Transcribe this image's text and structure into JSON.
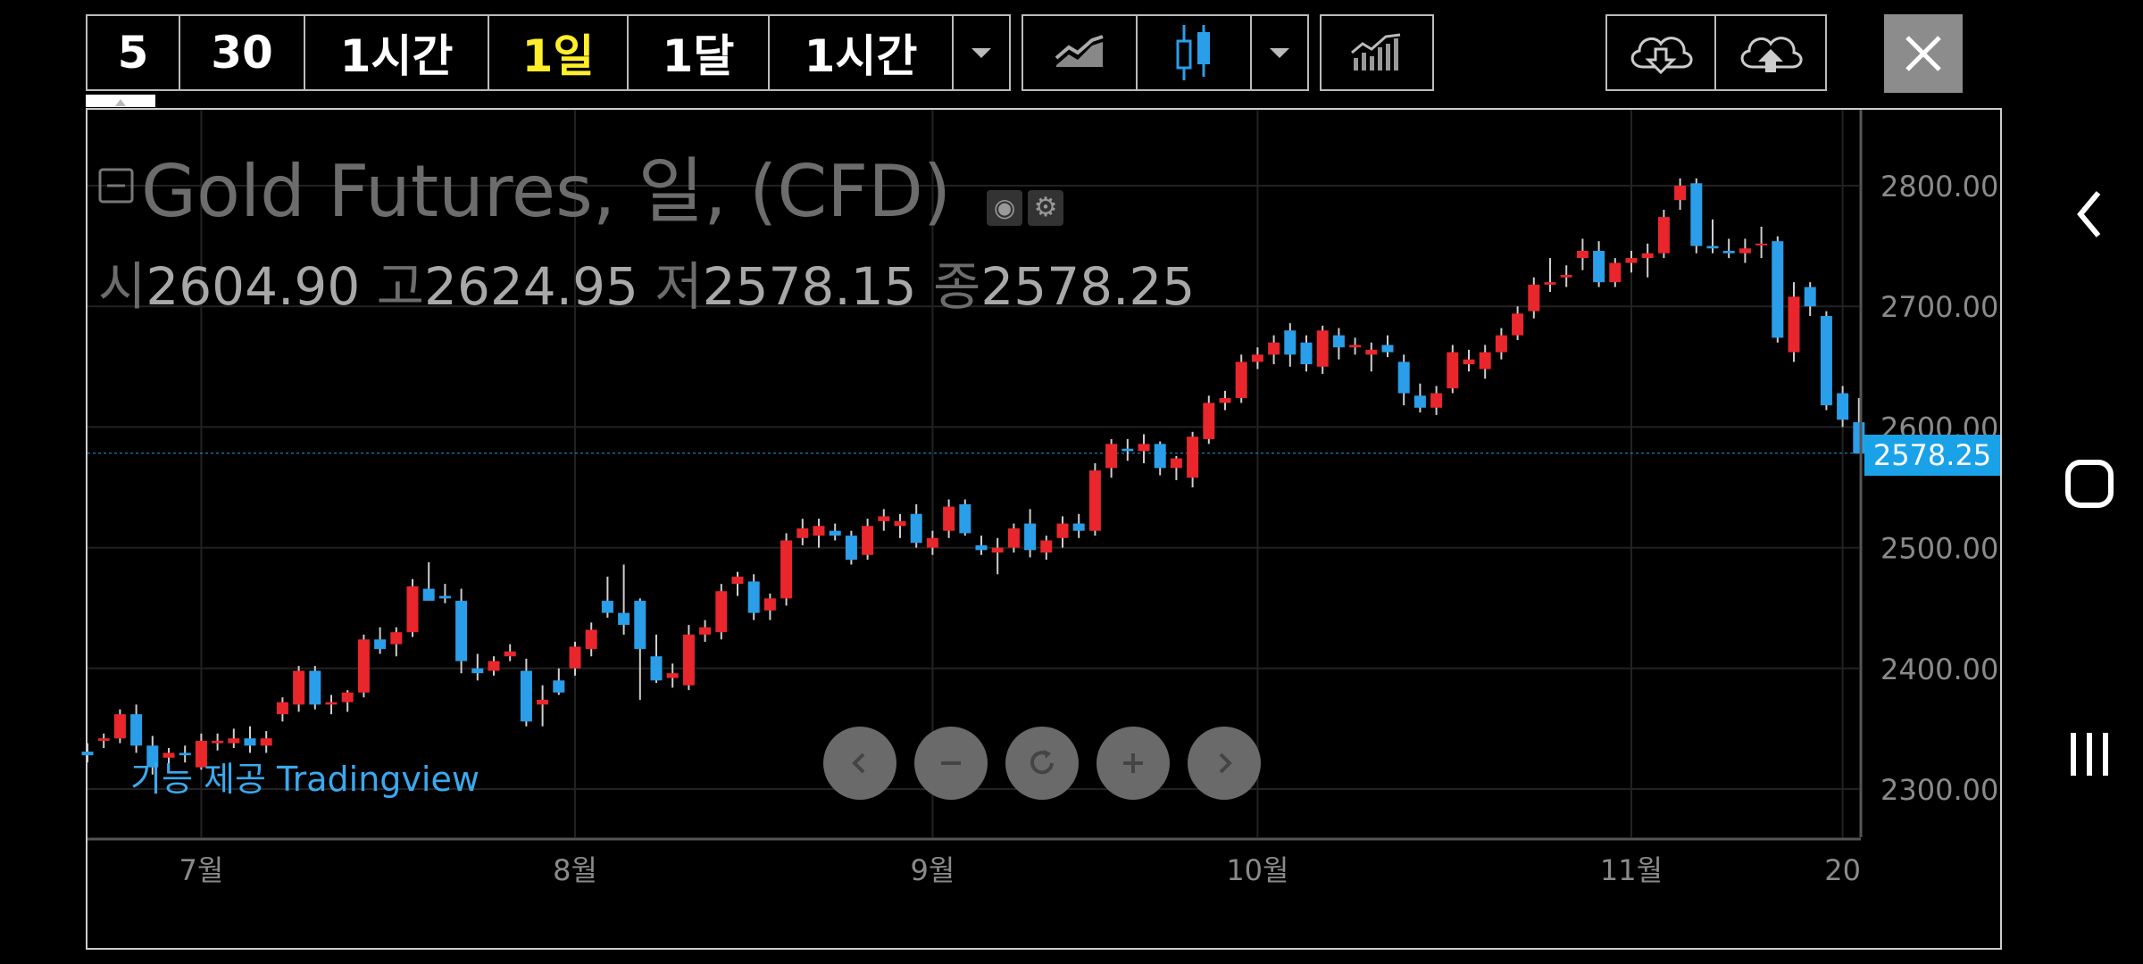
{
  "toolbar": {
    "intervals": [
      "5",
      "30",
      "1시간",
      "1일",
      "1달",
      "1시간"
    ],
    "active_interval": "1일"
  },
  "header": {
    "title": "Gold Futures, 일, (CFD)",
    "ohlc": {
      "open_label": "시",
      "open": "2604.90",
      "high_label": "고",
      "high": "2624.95",
      "low_label": "저",
      "low": "2578.15",
      "close_label": "종",
      "close": "2578.25"
    }
  },
  "attribution": "기능 제공 Tradingview",
  "colors": {
    "up": "#e8262b",
    "down": "#2a9ee8",
    "last_price": "#1aa2e8",
    "active": "#ffef2a"
  },
  "icons": [
    "chevron-left-icon",
    "minus-icon",
    "refresh-icon",
    "plus-icon",
    "chevron-right-icon",
    "line-chart-icon",
    "candlestick-icon",
    "indicators-icon",
    "cloud-download-icon",
    "cloud-upload-icon",
    "close-icon"
  ],
  "chart_data": {
    "type": "candlestick",
    "y_ticks": [
      "2800.00",
      "2700.00",
      "2600.00",
      "2500.00",
      "2400.00",
      "2300.00"
    ],
    "ylim": [
      2262,
      2858
    ],
    "x_ticks": [
      {
        "label": "7월",
        "i": 7
      },
      {
        "label": "8월",
        "i": 30
      },
      {
        "label": "9월",
        "i": 52
      },
      {
        "label": "10월",
        "i": 72
      },
      {
        "label": "11월",
        "i": 95
      },
      {
        "label": "20",
        "i": 108
      }
    ],
    "last_price": "2578.25",
    "candles": [
      [
        2331,
        2338,
        2322,
        2328
      ],
      [
        2340,
        2346,
        2334,
        2342
      ],
      [
        2342,
        2366,
        2338,
        2362
      ],
      [
        2362,
        2370,
        2330,
        2336
      ],
      [
        2336,
        2344,
        2312,
        2318
      ],
      [
        2326,
        2334,
        2320,
        2330
      ],
      [
        2330,
        2336,
        2322,
        2328
      ],
      [
        2318,
        2346,
        2316,
        2340
      ],
      [
        2338,
        2346,
        2332,
        2340
      ],
      [
        2338,
        2350,
        2334,
        2342
      ],
      [
        2342,
        2352,
        2330,
        2336
      ],
      [
        2336,
        2348,
        2330,
        2342
      ],
      [
        2362,
        2376,
        2356,
        2372
      ],
      [
        2370,
        2402,
        2364,
        2398
      ],
      [
        2398,
        2402,
        2366,
        2370
      ],
      [
        2370,
        2378,
        2362,
        2372
      ],
      [
        2372,
        2382,
        2364,
        2380
      ],
      [
        2380,
        2428,
        2376,
        2424
      ],
      [
        2424,
        2434,
        2412,
        2416
      ],
      [
        2420,
        2434,
        2410,
        2430
      ],
      [
        2430,
        2474,
        2426,
        2468
      ],
      [
        2466,
        2488,
        2456,
        2456
      ],
      [
        2460,
        2470,
        2454,
        2458
      ],
      [
        2456,
        2466,
        2396,
        2406
      ],
      [
        2400,
        2412,
        2390,
        2396
      ],
      [
        2398,
        2410,
        2394,
        2406
      ],
      [
        2410,
        2420,
        2406,
        2414
      ],
      [
        2398,
        2408,
        2352,
        2356
      ],
      [
        2370,
        2386,
        2352,
        2374
      ],
      [
        2390,
        2400,
        2378,
        2380
      ],
      [
        2400,
        2422,
        2394,
        2418
      ],
      [
        2416,
        2438,
        2410,
        2432
      ],
      [
        2456,
        2476,
        2442,
        2446
      ],
      [
        2446,
        2486,
        2428,
        2436
      ],
      [
        2456,
        2458,
        2374,
        2416
      ],
      [
        2410,
        2428,
        2388,
        2390
      ],
      [
        2392,
        2404,
        2384,
        2396
      ],
      [
        2386,
        2436,
        2382,
        2428
      ],
      [
        2428,
        2440,
        2422,
        2434
      ],
      [
        2430,
        2470,
        2424,
        2464
      ],
      [
        2470,
        2480,
        2460,
        2476
      ],
      [
        2472,
        2478,
        2440,
        2446
      ],
      [
        2448,
        2462,
        2440,
        2458
      ],
      [
        2458,
        2512,
        2452,
        2506
      ],
      [
        2508,
        2524,
        2502,
        2516
      ],
      [
        2510,
        2524,
        2500,
        2518
      ],
      [
        2514,
        2520,
        2506,
        2510
      ],
      [
        2510,
        2514,
        2486,
        2490
      ],
      [
        2494,
        2524,
        2490,
        2518
      ],
      [
        2522,
        2532,
        2514,
        2526
      ],
      [
        2518,
        2528,
        2508,
        2522
      ],
      [
        2528,
        2536,
        2500,
        2504
      ],
      [
        2500,
        2514,
        2494,
        2508
      ],
      [
        2514,
        2540,
        2508,
        2534
      ],
      [
        2536,
        2540,
        2510,
        2512
      ],
      [
        2502,
        2510,
        2494,
        2498
      ],
      [
        2496,
        2508,
        2478,
        2500
      ],
      [
        2500,
        2520,
        2496,
        2516
      ],
      [
        2520,
        2532,
        2492,
        2498
      ],
      [
        2496,
        2510,
        2490,
        2506
      ],
      [
        2508,
        2526,
        2500,
        2520
      ],
      [
        2520,
        2528,
        2508,
        2514
      ],
      [
        2514,
        2570,
        2510,
        2564
      ],
      [
        2566,
        2590,
        2558,
        2586
      ],
      [
        2582,
        2590,
        2572,
        2580
      ],
      [
        2580,
        2594,
        2570,
        2586
      ],
      [
        2586,
        2588,
        2560,
        2566
      ],
      [
        2566,
        2576,
        2556,
        2574
      ],
      [
        2558,
        2596,
        2550,
        2592
      ],
      [
        2590,
        2626,
        2586,
        2620
      ],
      [
        2620,
        2630,
        2614,
        2624
      ],
      [
        2624,
        2660,
        2620,
        2654
      ],
      [
        2654,
        2666,
        2648,
        2660
      ],
      [
        2660,
        2676,
        2652,
        2670
      ],
      [
        2680,
        2686,
        2650,
        2660
      ],
      [
        2670,
        2676,
        2646,
        2652
      ],
      [
        2650,
        2684,
        2644,
        2680
      ],
      [
        2676,
        2682,
        2656,
        2666
      ],
      [
        2666,
        2674,
        2660,
        2668
      ],
      [
        2660,
        2670,
        2646,
        2664
      ],
      [
        2668,
        2676,
        2658,
        2662
      ],
      [
        2654,
        2660,
        2618,
        2628
      ],
      [
        2626,
        2636,
        2612,
        2616
      ],
      [
        2616,
        2634,
        2610,
        2628
      ],
      [
        2632,
        2668,
        2628,
        2662
      ],
      [
        2652,
        2664,
        2646,
        2656
      ],
      [
        2648,
        2668,
        2640,
        2662
      ],
      [
        2662,
        2682,
        2656,
        2676
      ],
      [
        2676,
        2700,
        2672,
        2694
      ],
      [
        2696,
        2724,
        2690,
        2718
      ],
      [
        2718,
        2740,
        2712,
        2720
      ],
      [
        2724,
        2734,
        2716,
        2726
      ],
      [
        2740,
        2756,
        2730,
        2746
      ],
      [
        2746,
        2754,
        2716,
        2720
      ],
      [
        2720,
        2740,
        2716,
        2736
      ],
      [
        2736,
        2746,
        2728,
        2740
      ],
      [
        2740,
        2752,
        2724,
        2744
      ],
      [
        2744,
        2780,
        2740,
        2774
      ],
      [
        2788,
        2806,
        2780,
        2800
      ],
      [
        2802,
        2806,
        2744,
        2750
      ],
      [
        2750,
        2772,
        2744,
        2748
      ],
      [
        2746,
        2756,
        2740,
        2744
      ],
      [
        2744,
        2756,
        2736,
        2748
      ],
      [
        2752,
        2766,
        2740,
        2752
      ],
      [
        2754,
        2758,
        2670,
        2674
      ],
      [
        2662,
        2720,
        2654,
        2708
      ],
      [
        2716,
        2720,
        2692,
        2700
      ],
      [
        2692,
        2696,
        2614,
        2618
      ],
      [
        2628,
        2634,
        2600,
        2606
      ],
      [
        2604,
        2624,
        2578,
        2578
      ]
    ]
  }
}
